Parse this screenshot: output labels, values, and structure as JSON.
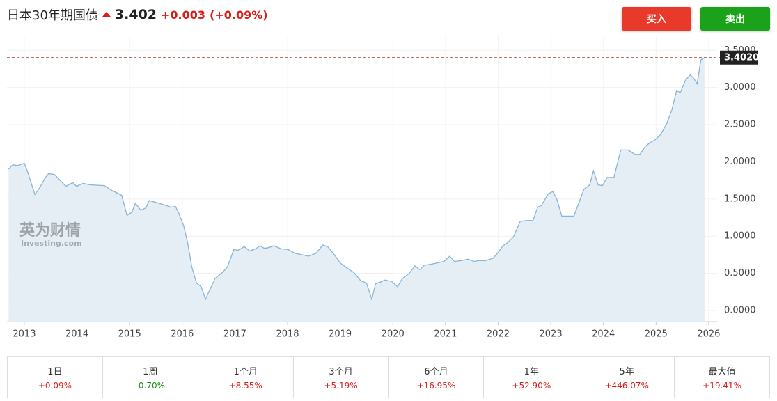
{
  "header": {
    "title": "日本30年期国债",
    "price": 3.402,
    "change": "+0.003",
    "change_percent": "(+0.09%)"
  },
  "buttons": {
    "buy": "买入",
    "sell": "卖出"
  },
  "chart_data": {
    "type": "area",
    "line_color": "#8ab4d6",
    "fill_color": "#e5eef5",
    "grid": true,
    "watermark": {
      "brand": "英为财情",
      "site": "Investing.com"
    },
    "current": {
      "value": 3.402,
      "label": "3.4020"
    },
    "xlim": [
      2012.67,
      2026.16
    ],
    "xticks": [
      2013,
      2014,
      2015,
      2016,
      2017,
      2018,
      2019,
      2020,
      2021,
      2022,
      2023,
      2024,
      2025,
      2026
    ],
    "ylim": [
      -0.15,
      3.69
    ],
    "yticks": [
      {
        "value": 0,
        "label": "0.0000"
      },
      {
        "value": 0.5,
        "label": "0.5000"
      },
      {
        "value": 1,
        "label": "1.0000"
      },
      {
        "value": 1.5,
        "label": "1.5000"
      },
      {
        "value": 2,
        "label": "2.0000"
      },
      {
        "value": 2.5,
        "label": "2.5000"
      },
      {
        "value": 3,
        "label": "3.0000"
      },
      {
        "value": 3.5,
        "label": "3.5000"
      }
    ],
    "x": [
      2012.7,
      2012.78,
      2012.87,
      2013.0,
      2013.07,
      2013.2,
      2013.29,
      2013.4,
      2013.46,
      2013.57,
      2013.79,
      2013.92,
      2013.99,
      2014.12,
      2014.25,
      2014.52,
      2014.65,
      2014.85,
      2014.95,
      2015.04,
      2015.11,
      2015.21,
      2015.31,
      2015.37,
      2015.57,
      2015.7,
      2015.79,
      2015.87,
      2015.94,
      2016.03,
      2016.1,
      2016.18,
      2016.27,
      2016.36,
      2016.44,
      2016.53,
      2016.62,
      2016.76,
      2016.86,
      2016.98,
      2017.06,
      2017.18,
      2017.28,
      2017.39,
      2017.48,
      2017.55,
      2017.61,
      2017.74,
      2017.88,
      2018.01,
      2018.14,
      2018.27,
      2018.4,
      2018.54,
      2018.67,
      2018.76,
      2018.87,
      2019.0,
      2019.13,
      2019.26,
      2019.39,
      2019.5,
      2019.6,
      2019.67,
      2019.76,
      2019.85,
      2019.98,
      2020.09,
      2020.18,
      2020.31,
      2020.42,
      2020.51,
      2020.6,
      2020.71,
      2020.84,
      2020.97,
      2021.08,
      2021.17,
      2021.3,
      2021.43,
      2021.54,
      2021.63,
      2021.76,
      2021.9,
      2022.0,
      2022.09,
      2022.16,
      2022.29,
      2022.42,
      2022.55,
      2022.66,
      2022.75,
      2022.82,
      2022.95,
      2023.04,
      2023.11,
      2023.21,
      2023.35,
      2023.44,
      2023.54,
      2023.63,
      2023.74,
      2023.81,
      2023.9,
      2023.98,
      2024.07,
      2024.2,
      2024.33,
      2024.47,
      2024.6,
      2024.69,
      2024.8,
      2024.89,
      2024.99,
      2025.09,
      2025.2,
      2025.3,
      2025.39,
      2025.46,
      2025.56,
      2025.65,
      2025.72,
      2025.78,
      2025.85,
      2025.92
    ],
    "values": [
      1.9,
      1.96,
      1.95,
      1.98,
      1.85,
      1.56,
      1.65,
      1.79,
      1.84,
      1.83,
      1.67,
      1.72,
      1.67,
      1.71,
      1.69,
      1.68,
      1.62,
      1.55,
      1.28,
      1.32,
      1.44,
      1.35,
      1.38,
      1.48,
      1.44,
      1.41,
      1.39,
      1.4,
      1.3,
      1.13,
      0.92,
      0.59,
      0.37,
      0.32,
      0.15,
      0.29,
      0.43,
      0.51,
      0.59,
      0.82,
      0.81,
      0.86,
      0.8,
      0.83,
      0.87,
      0.84,
      0.84,
      0.87,
      0.83,
      0.82,
      0.77,
      0.75,
      0.73,
      0.77,
      0.88,
      0.86,
      0.77,
      0.64,
      0.57,
      0.51,
      0.4,
      0.37,
      0.15,
      0.36,
      0.38,
      0.41,
      0.39,
      0.32,
      0.43,
      0.5,
      0.6,
      0.55,
      0.61,
      0.62,
      0.64,
      0.66,
      0.73,
      0.66,
      0.67,
      0.69,
      0.66,
      0.67,
      0.67,
      0.7,
      0.78,
      0.87,
      0.9,
      0.99,
      1.2,
      1.21,
      1.21,
      1.39,
      1.41,
      1.57,
      1.6,
      1.51,
      1.27,
      1.27,
      1.27,
      1.46,
      1.63,
      1.69,
      1.88,
      1.69,
      1.68,
      1.79,
      1.79,
      2.16,
      2.16,
      2.1,
      2.1,
      2.21,
      2.26,
      2.3,
      2.37,
      2.51,
      2.7,
      2.96,
      2.93,
      3.1,
      3.17,
      3.12,
      3.05,
      3.37,
      3.402
    ]
  },
  "performance": [
    {
      "period": "1日",
      "change": "+0.09%",
      "color": "#d91e18"
    },
    {
      "period": "1周",
      "change": "-0.70%",
      "color": "#1a8a1a"
    },
    {
      "period": "1个月",
      "change": "+8.55%",
      "color": "#d91e18"
    },
    {
      "period": "3个月",
      "change": "+5.19%",
      "color": "#d91e18"
    },
    {
      "period": "6个月",
      "change": "+16.95%",
      "color": "#d91e18"
    },
    {
      "period": "1年",
      "change": "+52.90%",
      "color": "#d91e18"
    },
    {
      "period": "5年",
      "change": "+446.07%",
      "color": "#d91e18"
    },
    {
      "period": "最大值",
      "change": "+19.41%",
      "color": "#d91e18"
    }
  ]
}
